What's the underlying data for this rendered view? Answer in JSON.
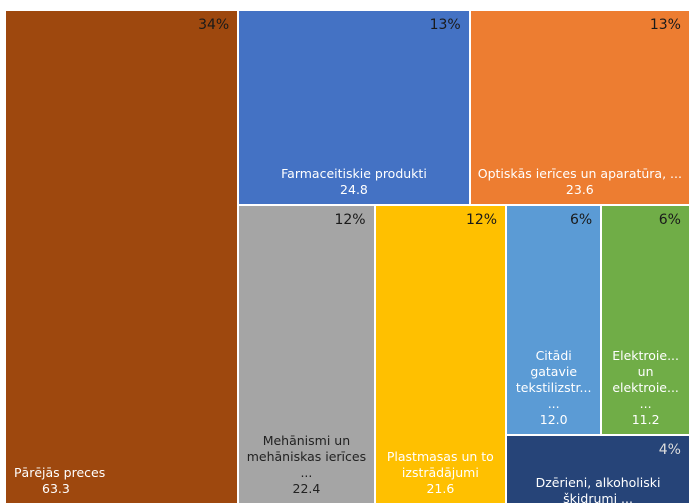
{
  "chart_data": {
    "type": "treemap",
    "categories": [
      "Pārējās preces",
      "Farmaceitiskie produkti",
      "Optiskās ierīces un aparatūra, ...",
      "Mehānismi un mehāniskas ierīces ...",
      "Plastmasas un to izstrādājumi",
      "Citādi gatavie tekstilizstr... ...",
      "Elektroie... un elektroie... ...",
      "Dzērieni, alkoholiski šķidrumi ..."
    ],
    "values": [
      63.3,
      24.8,
      23.6,
      22.4,
      21.6,
      12.0,
      11.2,
      7.0
    ],
    "value_labels": [
      "63.3",
      "24.8",
      "23.6",
      "22.4",
      "21.6",
      "12.0",
      "11.2",
      null
    ],
    "percent_labels": [
      "34%",
      "13%",
      "13%",
      "12%",
      "12%",
      "6%",
      "6%",
      "4%"
    ],
    "colors": [
      "#9e480e",
      "#4472c4",
      "#ed7d31",
      "#a5a5a5",
      "#ffc000",
      "#5b9bd5",
      "#70ad47",
      "#264478"
    ]
  }
}
